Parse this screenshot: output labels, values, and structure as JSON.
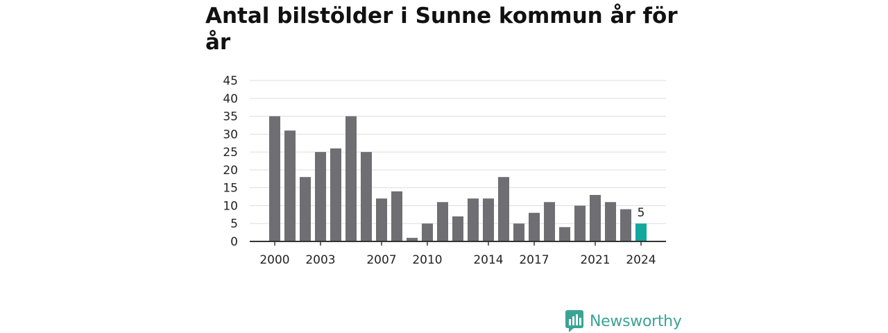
{
  "chart_data": {
    "type": "bar",
    "title": "Antal bilstölder i Sunne kommun år för år",
    "xlabel": "",
    "ylabel": "",
    "ylim": [
      0,
      45
    ],
    "yticks": [
      0,
      5,
      10,
      15,
      20,
      25,
      30,
      35,
      40,
      45
    ],
    "x": [
      2000,
      2001,
      2002,
      2003,
      2004,
      2005,
      2006,
      2007,
      2008,
      2009,
      2010,
      2011,
      2012,
      2013,
      2014,
      2015,
      2016,
      2017,
      2018,
      2019,
      2020,
      2021,
      2022,
      2023,
      2024
    ],
    "values": [
      35,
      31,
      18,
      25,
      26,
      35,
      25,
      12,
      14,
      1,
      5,
      11,
      7,
      12,
      12,
      18,
      5,
      8,
      11,
      4,
      10,
      13,
      11,
      9,
      5
    ],
    "xtick_labels": [
      2000,
      2003,
      2007,
      2010,
      2014,
      2017,
      2021,
      2024
    ],
    "highlight": {
      "x": 2024,
      "label": "5"
    },
    "colors": {
      "bar": "#6e6e73",
      "highlight": "#12a89d",
      "grid": "#dddddd",
      "axis": "#333333"
    },
    "grid": true,
    "legend": "none"
  },
  "brand": {
    "name": "Newsworthy",
    "color": "#3aa394"
  }
}
